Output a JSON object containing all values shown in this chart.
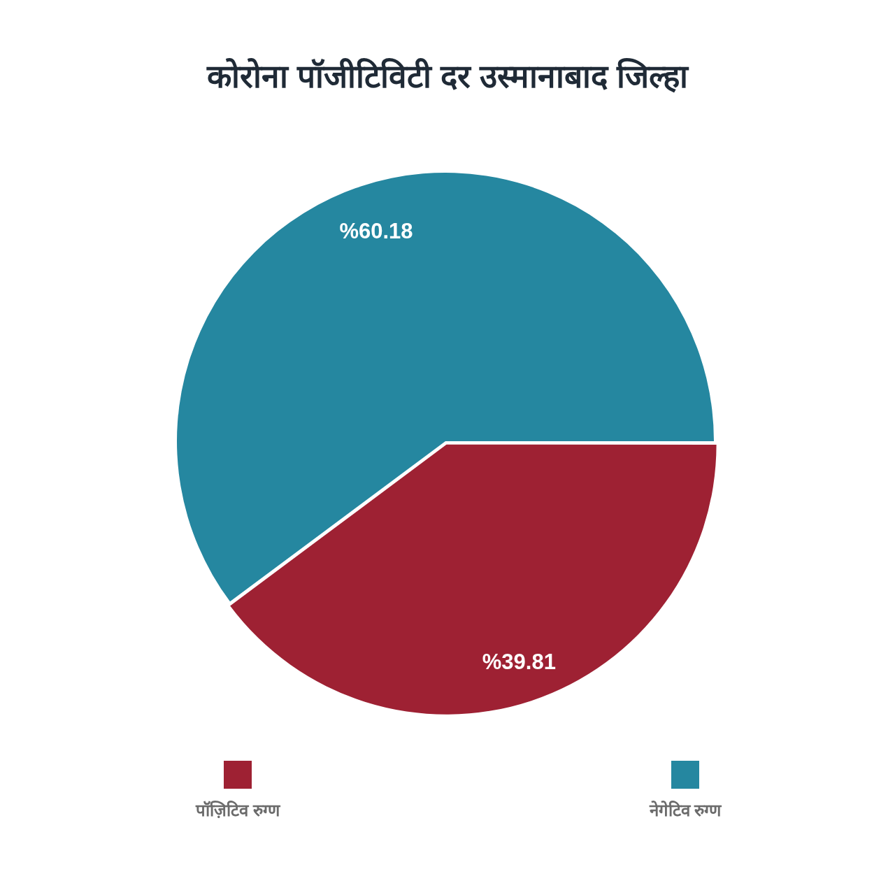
{
  "chart_data": {
    "type": "pie",
    "title": "कोरोना पॉजीटिविटी दर उस्मानाबाद जिल्हा",
    "categories": [
      "पॉज़िटिव रुग्ण",
      "नेगेटिव रुग्ण"
    ],
    "values": [
      39.81,
      60.18
    ],
    "colors": [
      "#9e2133",
      "#2587a0"
    ],
    "value_labels": [
      "%39.81",
      "%60.18"
    ],
    "legend": "bottom"
  }
}
